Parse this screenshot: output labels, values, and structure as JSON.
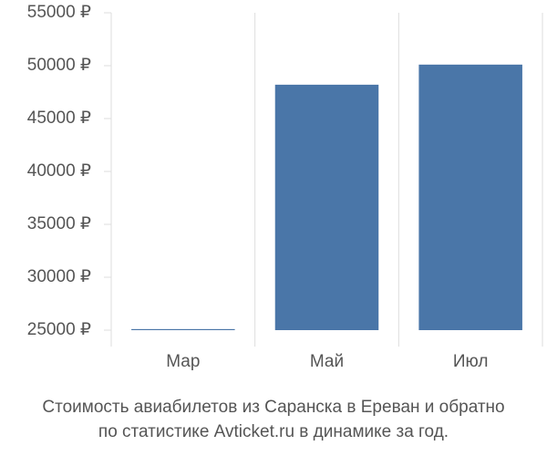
{
  "chart_data": {
    "type": "bar",
    "title": [
      "Стоимость авиабилетов из Саранска в Ереван и обратно",
      "по статистике Avticket.ru в динамике за год."
    ],
    "categories": [
      "Мар",
      "Май",
      "Июл"
    ],
    "values": [
      25100,
      48200,
      50100
    ],
    "color": "#4a76a8",
    "ylim": [
      25000,
      55000
    ],
    "yticks": [
      {
        "value": 25000,
        "label": "25000 ₽"
      },
      {
        "value": 30000,
        "label": "30000 ₽"
      },
      {
        "value": 35000,
        "label": "35000 ₽"
      },
      {
        "value": 40000,
        "label": "40000 ₽"
      },
      {
        "value": 45000,
        "label": "45000 ₽"
      },
      {
        "value": 50000,
        "label": "50000 ₽"
      },
      {
        "value": 55000,
        "label": "55000 ₽"
      }
    ]
  }
}
